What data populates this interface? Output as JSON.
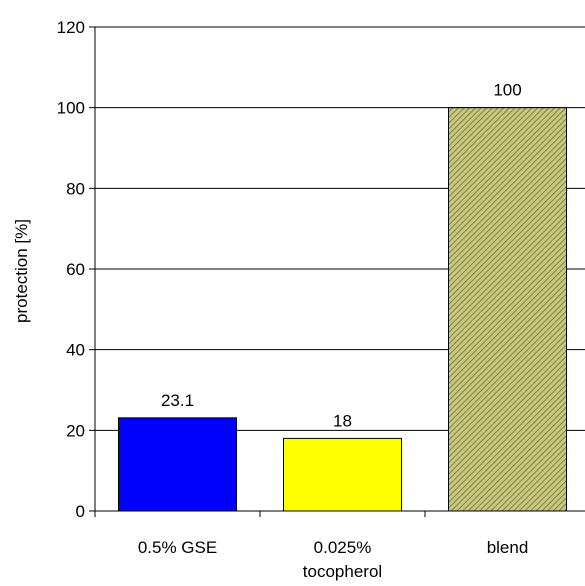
{
  "chart_data": {
    "type": "bar",
    "categories": [
      [
        "0.5% GSE"
      ],
      [
        "0.025%",
        "tocopherol"
      ],
      [
        "blend"
      ]
    ],
    "values": [
      23.1,
      18,
      100
    ],
    "data_labels": [
      "23.1",
      "18",
      "100"
    ],
    "colors": [
      "#0000ff",
      "#ffff00",
      "#a8a858"
    ],
    "fill_patterns": [
      "solid",
      "solid",
      "diagonal-hatch"
    ],
    "ylabel": "protection [%]",
    "xlabel": "",
    "ylim": [
      0,
      120
    ],
    "yticks": [
      0,
      20,
      40,
      60,
      80,
      100,
      120
    ],
    "grid": true,
    "legend": false
  }
}
